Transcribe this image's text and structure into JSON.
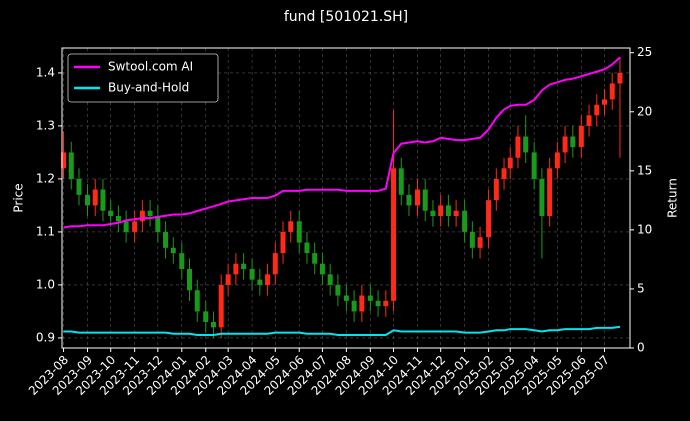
{
  "chart_data": {
    "type": "candlestick",
    "title": "fund [501021.SH]",
    "ylabel": "Price",
    "y2label": "Return",
    "x": [
      "2023-08-01",
      "2023-08-11",
      "2023-08-21",
      "2023-09-01",
      "2023-09-11",
      "2023-09-21",
      "2023-10-01",
      "2023-10-11",
      "2023-10-21",
      "2023-11-01",
      "2023-11-11",
      "2023-11-21",
      "2023-12-01",
      "2023-12-11",
      "2023-12-21",
      "2024-01-01",
      "2024-01-11",
      "2024-01-21",
      "2024-02-01",
      "2024-02-11",
      "2024-02-21",
      "2024-03-01",
      "2024-03-11",
      "2024-03-21",
      "2024-04-01",
      "2024-04-11",
      "2024-04-21",
      "2024-05-01",
      "2024-05-11",
      "2024-05-21",
      "2024-06-01",
      "2024-06-11",
      "2024-06-21",
      "2024-07-01",
      "2024-07-11",
      "2024-07-21",
      "2024-08-01",
      "2024-08-11",
      "2024-08-21",
      "2024-09-01",
      "2024-09-11",
      "2024-09-21",
      "2024-10-01",
      "2024-10-11",
      "2024-10-21",
      "2024-11-01",
      "2024-11-11",
      "2024-11-21",
      "2024-12-01",
      "2024-12-11",
      "2024-12-21",
      "2025-01-01",
      "2025-01-11",
      "2025-01-21",
      "2025-02-01",
      "2025-02-11",
      "2025-02-21",
      "2025-03-01",
      "2025-03-11",
      "2025-03-21",
      "2025-04-01",
      "2025-04-11",
      "2025-04-21",
      "2025-05-01",
      "2025-05-11",
      "2025-05-21",
      "2025-06-01",
      "2025-06-11",
      "2025-06-21",
      "2025-07-01",
      "2025-07-11",
      "2025-07-21"
    ],
    "open": [
      1.22,
      1.25,
      1.2,
      1.17,
      1.15,
      1.18,
      1.14,
      1.13,
      1.12,
      1.1,
      1.12,
      1.14,
      1.13,
      1.1,
      1.07,
      1.06,
      1.03,
      0.99,
      0.95,
      0.93,
      0.92,
      1.0,
      1.02,
      1.04,
      1.03,
      1.01,
      1.0,
      1.02,
      1.06,
      1.1,
      1.12,
      1.08,
      1.06,
      1.04,
      1.02,
      1.0,
      0.98,
      0.97,
      0.95,
      0.98,
      0.97,
      0.96,
      0.97,
      1.22,
      1.17,
      1.15,
      1.18,
      1.14,
      1.13,
      1.15,
      1.13,
      1.14,
      1.1,
      1.07,
      1.09,
      1.16,
      1.2,
      1.22,
      1.24,
      1.28,
      1.25,
      1.2,
      1.13,
      1.22,
      1.25,
      1.28,
      1.26,
      1.3,
      1.32,
      1.34,
      1.35,
      1.38
    ],
    "high": [
      1.29,
      1.27,
      1.22,
      1.19,
      1.2,
      1.2,
      1.16,
      1.15,
      1.14,
      1.14,
      1.16,
      1.16,
      1.15,
      1.12,
      1.09,
      1.08,
      1.05,
      1.01,
      0.97,
      0.95,
      1.02,
      1.04,
      1.06,
      1.06,
      1.05,
      1.03,
      1.04,
      1.08,
      1.12,
      1.14,
      1.14,
      1.1,
      1.08,
      1.06,
      1.04,
      1.02,
      1.0,
      0.99,
      1.0,
      1.0,
      0.99,
      0.99,
      1.33,
      1.24,
      1.19,
      1.2,
      1.2,
      1.16,
      1.17,
      1.17,
      1.16,
      1.16,
      1.12,
      1.11,
      1.18,
      1.22,
      1.24,
      1.26,
      1.3,
      1.32,
      1.27,
      1.22,
      1.24,
      1.27,
      1.3,
      1.3,
      1.32,
      1.34,
      1.36,
      1.37,
      1.4,
      1.43
    ],
    "low": [
      1.2,
      1.18,
      1.15,
      1.13,
      1.13,
      1.12,
      1.11,
      1.1,
      1.08,
      1.08,
      1.1,
      1.11,
      1.08,
      1.05,
      1.04,
      1.01,
      0.97,
      0.93,
      0.91,
      0.9,
      0.9,
      0.98,
      1.0,
      1.01,
      0.99,
      0.98,
      0.98,
      1.0,
      1.04,
      1.08,
      1.06,
      1.04,
      1.02,
      1.0,
      0.98,
      0.96,
      0.95,
      0.93,
      0.93,
      0.95,
      0.94,
      0.94,
      0.95,
      1.15,
      1.13,
      1.13,
      1.12,
      1.11,
      1.11,
      1.11,
      1.11,
      1.08,
      1.05,
      1.05,
      1.07,
      1.14,
      1.18,
      1.2,
      1.22,
      1.23,
      1.18,
      1.05,
      1.11,
      1.2,
      1.23,
      1.24,
      1.24,
      1.28,
      1.3,
      1.32,
      1.33,
      1.24
    ],
    "close": [
      1.25,
      1.2,
      1.17,
      1.15,
      1.18,
      1.14,
      1.13,
      1.12,
      1.1,
      1.12,
      1.14,
      1.13,
      1.1,
      1.07,
      1.06,
      1.03,
      0.99,
      0.95,
      0.93,
      0.92,
      1.0,
      1.02,
      1.04,
      1.03,
      1.01,
      1.0,
      1.02,
      1.06,
      1.1,
      1.12,
      1.08,
      1.06,
      1.04,
      1.02,
      1.0,
      0.98,
      0.97,
      0.95,
      0.98,
      0.97,
      0.96,
      0.97,
      1.22,
      1.17,
      1.15,
      1.18,
      1.14,
      1.13,
      1.15,
      1.13,
      1.14,
      1.1,
      1.07,
      1.09,
      1.16,
      1.2,
      1.22,
      1.24,
      1.28,
      1.25,
      1.2,
      1.13,
      1.22,
      1.25,
      1.28,
      1.26,
      1.3,
      1.32,
      1.34,
      1.35,
      1.38,
      1.4
    ],
    "up_color": "#ff2a1a",
    "down_color": "#1a9a1a",
    "series": [
      {
        "name": "Swtool.com AI",
        "color": "#ff00ff",
        "axis": "y2",
        "values": [
          10.2,
          10.3,
          10.3,
          10.4,
          10.4,
          10.4,
          10.5,
          10.6,
          10.8,
          10.9,
          11.0,
          11.0,
          11.1,
          11.2,
          11.3,
          11.3,
          11.4,
          11.6,
          11.8,
          12.0,
          12.2,
          12.4,
          12.5,
          12.6,
          12.7,
          12.7,
          12.7,
          12.9,
          13.3,
          13.3,
          13.3,
          13.4,
          13.4,
          13.4,
          13.4,
          13.4,
          13.3,
          13.3,
          13.3,
          13.3,
          13.3,
          13.5,
          16.5,
          17.3,
          17.4,
          17.5,
          17.4,
          17.5,
          17.8,
          17.7,
          17.6,
          17.6,
          17.7,
          17.8,
          18.5,
          19.5,
          20.2,
          20.5,
          20.6,
          20.6,
          21.0,
          21.8,
          22.3,
          22.5,
          22.7,
          22.8,
          23.0,
          23.2,
          23.4,
          23.6,
          24.0,
          24.6
        ]
      },
      {
        "name": "Buy-and-Hold",
        "color": "#00e5ee",
        "axis": "y2",
        "values": [
          1.4,
          1.4,
          1.3,
          1.3,
          1.3,
          1.3,
          1.3,
          1.3,
          1.3,
          1.3,
          1.3,
          1.3,
          1.3,
          1.3,
          1.2,
          1.2,
          1.2,
          1.1,
          1.1,
          1.1,
          1.2,
          1.2,
          1.2,
          1.2,
          1.2,
          1.2,
          1.2,
          1.3,
          1.3,
          1.3,
          1.3,
          1.2,
          1.2,
          1.2,
          1.2,
          1.1,
          1.1,
          1.1,
          1.1,
          1.1,
          1.1,
          1.1,
          1.5,
          1.4,
          1.4,
          1.4,
          1.4,
          1.4,
          1.4,
          1.4,
          1.4,
          1.3,
          1.3,
          1.3,
          1.4,
          1.5,
          1.5,
          1.6,
          1.6,
          1.6,
          1.5,
          1.4,
          1.5,
          1.5,
          1.6,
          1.6,
          1.6,
          1.6,
          1.7,
          1.7,
          1.7,
          1.8
        ]
      }
    ],
    "xlim": [
      "2023-07-30",
      "2025-08-03"
    ],
    "xticks": [
      {
        "value": "2023-08-01",
        "label": "2023-08"
      },
      {
        "value": "2023-09-01",
        "label": "2023-09"
      },
      {
        "value": "2023-10-01",
        "label": "2023-10"
      },
      {
        "value": "2023-11-01",
        "label": "2023-11"
      },
      {
        "value": "2023-12-01",
        "label": "2023-12"
      },
      {
        "value": "2024-01-01",
        "label": "2024-01"
      },
      {
        "value": "2024-02-01",
        "label": "2024-02"
      },
      {
        "value": "2024-03-01",
        "label": "2024-03"
      },
      {
        "value": "2024-04-01",
        "label": "2024-04"
      },
      {
        "value": "2024-05-01",
        "label": "2024-05"
      },
      {
        "value": "2024-06-01",
        "label": "2024-06"
      },
      {
        "value": "2024-07-01",
        "label": "2024-07"
      },
      {
        "value": "2024-08-01",
        "label": "2024-08"
      },
      {
        "value": "2024-09-01",
        "label": "2024-09"
      },
      {
        "value": "2024-10-01",
        "label": "2024-10"
      },
      {
        "value": "2024-11-01",
        "label": "2024-11"
      },
      {
        "value": "2024-12-01",
        "label": "2024-12"
      },
      {
        "value": "2025-01-01",
        "label": "2025-01"
      },
      {
        "value": "2025-02-01",
        "label": "2025-02"
      },
      {
        "value": "2025-03-01",
        "label": "2025-03"
      },
      {
        "value": "2025-04-01",
        "label": "2025-04"
      },
      {
        "value": "2025-05-01",
        "label": "2025-05"
      },
      {
        "value": "2025-06-01",
        "label": "2025-06"
      },
      {
        "value": "2025-07-01",
        "label": "2025-07"
      }
    ],
    "ylim": [
      0.881,
      1.447
    ],
    "yticks": [
      0.9,
      {
        "value": 1,
        "label": "1.0"
      },
      1.1,
      1.2,
      1.3,
      1.4
    ],
    "y2lim": [
      0,
      25.4
    ],
    "y2ticks": [
      0,
      5,
      10,
      15,
      20,
      25
    ],
    "grid": true,
    "legend": "upper left"
  }
}
